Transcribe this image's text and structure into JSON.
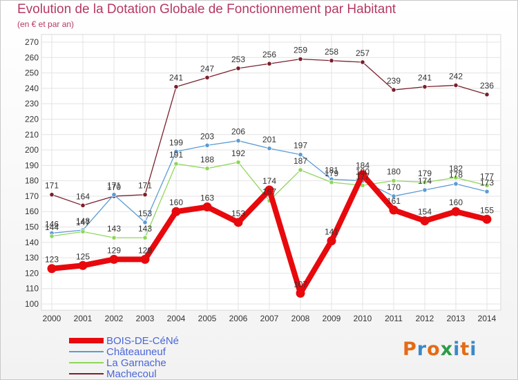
{
  "title": "Evolution de la Dotation Globale de Fonctionnement par Habitant",
  "subtitle": "(en € et par an)",
  "logo": {
    "text": "Proxiti",
    "colors": [
      "#e46b14",
      "#3b88c9",
      "#e46b14",
      "#2d9b4a",
      "#3b88c9",
      "#e46b14",
      "#3b88c9"
    ]
  },
  "chart_data": {
    "type": "line",
    "x": [
      "2000",
      "2001",
      "2002",
      "2003",
      "2004",
      "2005",
      "2006",
      "2007",
      "2008",
      "2009",
      "2010",
      "2011",
      "2012",
      "2013",
      "2014"
    ],
    "ylim": [
      100,
      270
    ],
    "yticks": [
      100,
      110,
      120,
      130,
      140,
      150,
      160,
      170,
      180,
      190,
      200,
      210,
      220,
      230,
      240,
      250,
      260,
      270
    ],
    "grid": true,
    "legend_position": "bottom-left",
    "series": [
      {
        "name": "Machecoul",
        "color": "#7a1f2b",
        "values": [
          171,
          164,
          170,
          171,
          241,
          247,
          253,
          256,
          259,
          258,
          257,
          239,
          241,
          242,
          236
        ]
      },
      {
        "name": "Châteauneuf",
        "color": "#5b9bd5",
        "values": [
          146,
          148,
          171,
          153,
          199,
          203,
          206,
          201,
          197,
          181,
          180,
          170,
          174,
          178,
          173
        ]
      },
      {
        "name": "La Garnache",
        "color": "#8fd65a",
        "values": [
          144,
          147,
          143,
          143,
          191,
          188,
          192,
          167,
          187,
          179,
          177,
          180,
          179,
          182,
          177
        ]
      },
      {
        "name": "BOIS-DE-CéNé",
        "color": "#e8090d",
        "values": [
          123,
          125,
          129,
          129,
          160,
          163,
          153,
          174,
          107,
          141,
          184,
          161,
          154,
          160,
          155
        ]
      }
    ],
    "data_labels": [
      [
        "171",
        "164",
        "170",
        "171",
        "241",
        "247",
        "253",
        "256",
        "259",
        "258",
        "257",
        "239",
        "241",
        "242",
        "236"
      ],
      [
        "146",
        "148",
        "171",
        "153",
        "199",
        "203",
        "206",
        "201",
        "197",
        "181",
        "180",
        "170",
        "174",
        "178",
        "173"
      ],
      [
        "144",
        "147",
        "143",
        "143",
        "191",
        "188",
        "192",
        "167",
        "187",
        "179",
        "177",
        "180",
        "179",
        "182",
        "177"
      ],
      [
        "123",
        "125",
        "129",
        "129",
        "160",
        "163",
        "153",
        "174",
        "107",
        "141",
        "184",
        "161",
        "154",
        "160",
        "155"
      ]
    ],
    "legend": [
      "BOIS-DE-CéNé",
      "Châteauneuf",
      "La Garnache",
      "Machecoul"
    ]
  }
}
